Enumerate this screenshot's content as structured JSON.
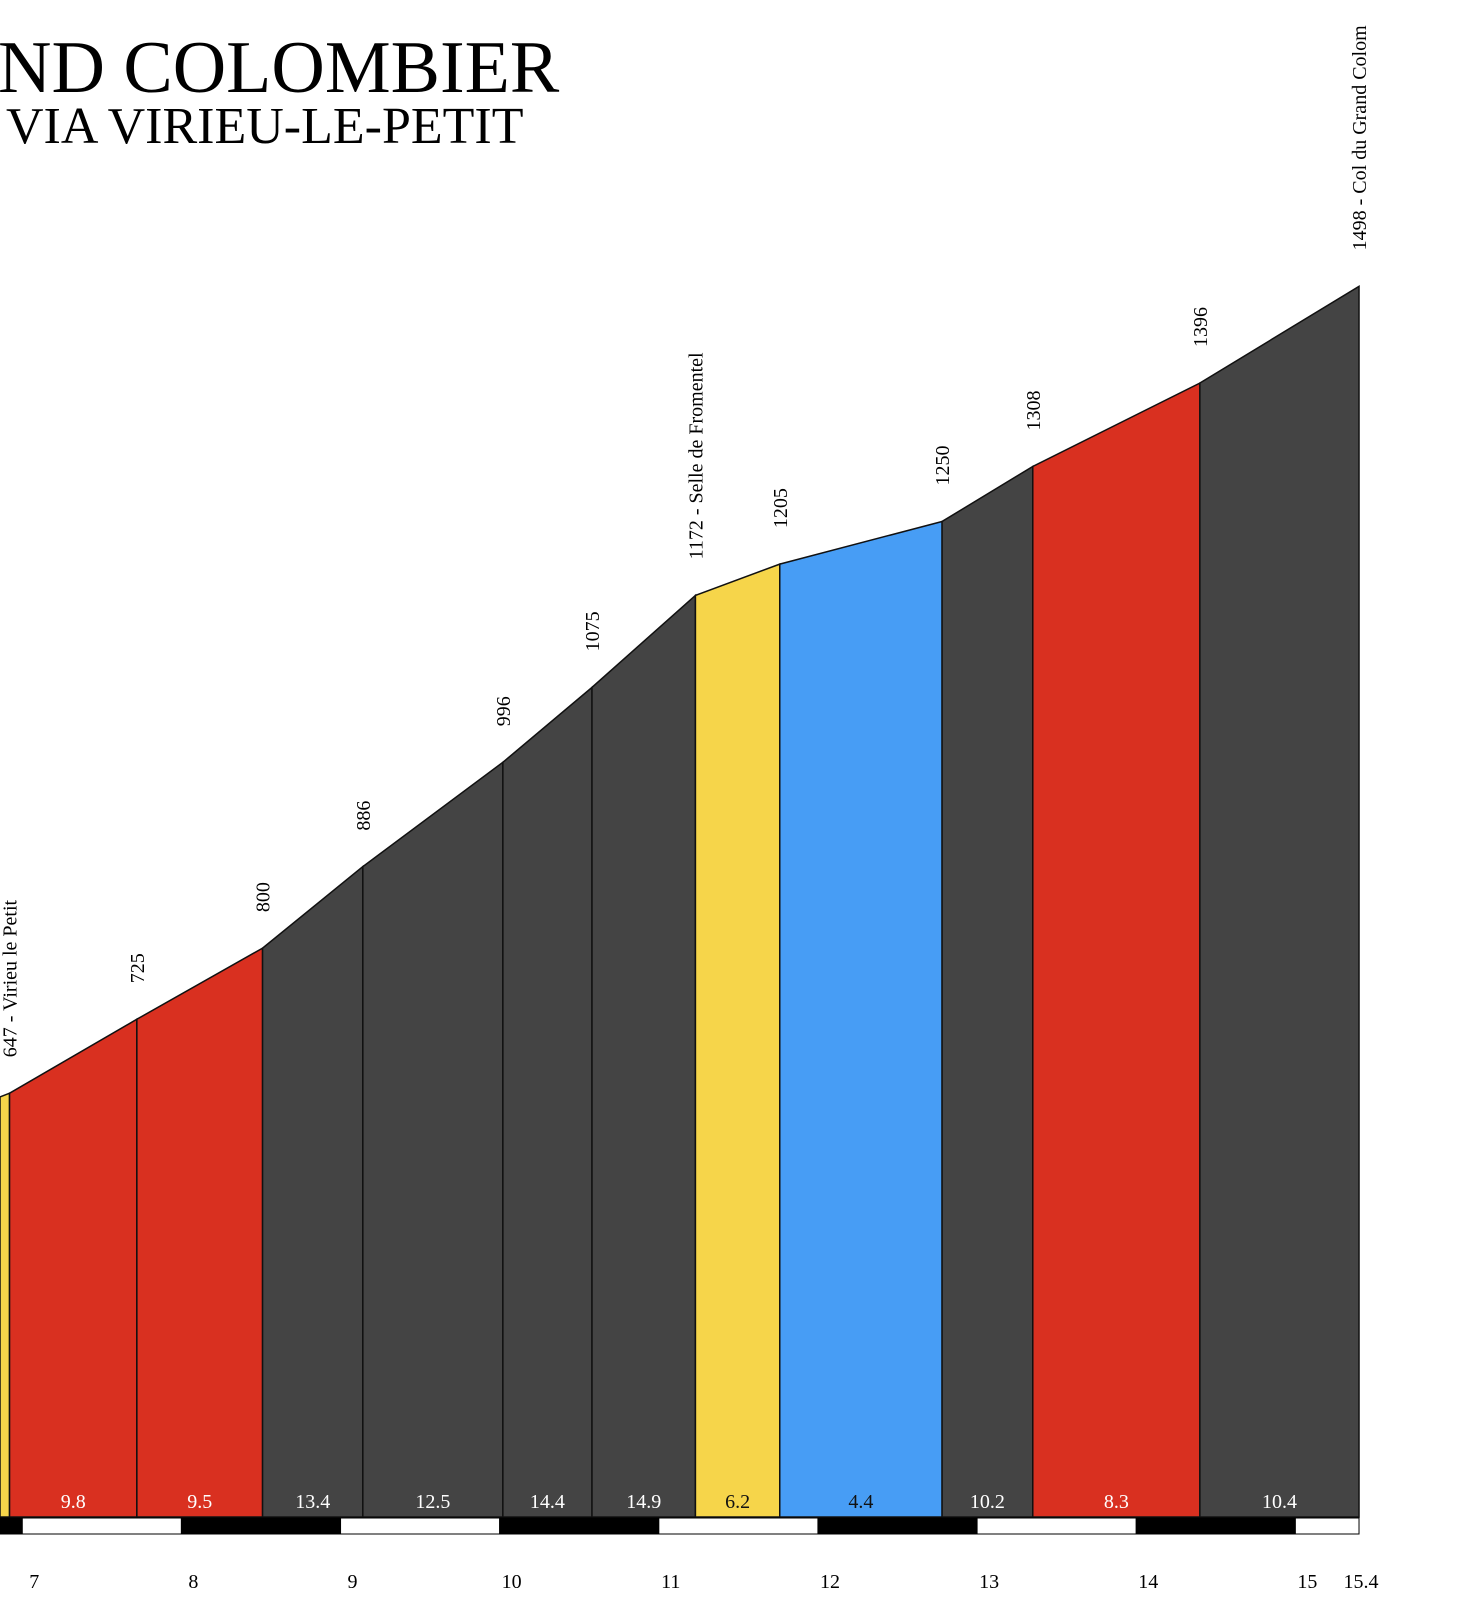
{
  "chart_data": {
    "type": "profile",
    "title": "ND COLOMBIER",
    "subtitle": "VIA VIRIEU-LE-PETIT",
    "x": [
      6.86,
      6.92,
      7.72,
      8.51,
      9.14,
      10.02,
      10.58,
      11.23,
      11.76,
      12.78,
      13.35,
      14.4,
      15.4
    ],
    "values": [
      643,
      647,
      725,
      800,
      886,
      996,
      1075,
      1172,
      1205,
      1250,
      1308,
      1396,
      1498
    ],
    "value_labels": [
      null,
      "647 - Virieu le Petit",
      "725",
      "800",
      "886",
      "996",
      "1075",
      "1172 - Selle de Fromentel",
      "1205",
      "1250",
      "1308",
      "1396",
      "1498 - Col du Grand Colom"
    ],
    "gradients": [
      null,
      9.8,
      9.5,
      13.4,
      12.5,
      14.4,
      14.9,
      6.2,
      4.4,
      10.2,
      8.3,
      10.4
    ],
    "segment_colors": [
      "#f6d54a",
      "#d93020",
      "#d93020",
      "#444444",
      "#444444",
      "#444444",
      "#444444",
      "#f6d54a",
      "#479df5",
      "#444444",
      "#d93020",
      "#444444"
    ],
    "xlim": [
      6.86,
      16.11
    ],
    "ylim": [
      200,
      1800
    ],
    "xticks": [
      7,
      8,
      9,
      10,
      11,
      12,
      13,
      14,
      15,
      15.4
    ]
  }
}
